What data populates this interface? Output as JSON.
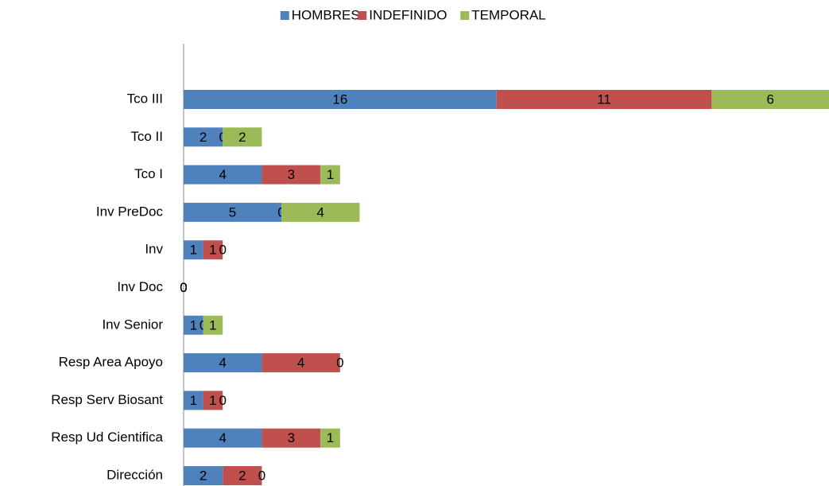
{
  "chart_data": {
    "type": "stacked-bar-horizontal",
    "categories": [
      "Tco III",
      "Tco II",
      "Tco I",
      "Inv PreDoc",
      "Inv",
      "Inv Doc",
      "Inv Senior",
      "Resp Area Apoyo",
      "Resp Serv Biosant",
      "Resp Ud Cientifica",
      "Dirección"
    ],
    "series": [
      {
        "name": "HOMBRES",
        "color": "#4f81bd",
        "values": [
          16,
          2,
          4,
          5,
          1,
          0,
          1,
          4,
          1,
          4,
          2
        ]
      },
      {
        "name": "INDEFINIDO",
        "color": "#c0504d",
        "values": [
          11,
          0,
          3,
          0,
          1,
          0,
          0,
          4,
          1,
          3,
          2
        ]
      },
      {
        "name": "TEMPORAL",
        "color": "#9bbb59",
        "values": [
          6,
          2,
          1,
          4,
          0,
          0,
          1,
          0,
          0,
          1,
          0
        ]
      }
    ],
    "legend": "top"
  }
}
